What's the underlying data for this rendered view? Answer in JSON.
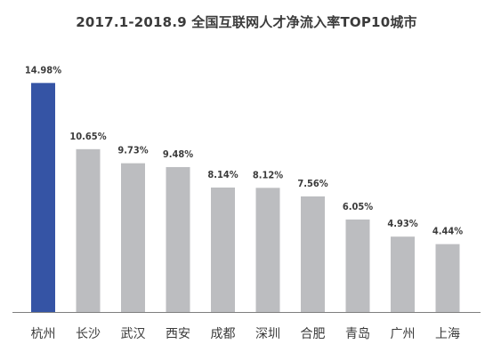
{
  "chart_data": {
    "type": "bar",
    "title": "2017.1-2018.9 全国互联网人才净流入率TOP10城市",
    "xlabel": "",
    "ylabel": "",
    "categories": [
      "杭州",
      "长沙",
      "武汉",
      "西安",
      "成都",
      "深圳",
      "合肥",
      "青岛",
      "广州",
      "上海"
    ],
    "values": [
      14.98,
      10.65,
      9.73,
      9.48,
      8.14,
      8.12,
      7.56,
      6.05,
      4.93,
      4.44
    ],
    "value_labels": [
      "14.98%",
      "10.65%",
      "9.73%",
      "9.48%",
      "8.14%",
      "8.12%",
      "7.56%",
      "6.05%",
      "4.93%",
      "4.44%"
    ],
    "ylim": [
      0,
      15
    ],
    "grid": false,
    "legend": "none",
    "colors": {
      "highlight": "#3554a5",
      "bar": "#bcbdc0",
      "axis": "#7f7f7f",
      "label": "#3b3b3b"
    },
    "highlight_index": 0
  }
}
